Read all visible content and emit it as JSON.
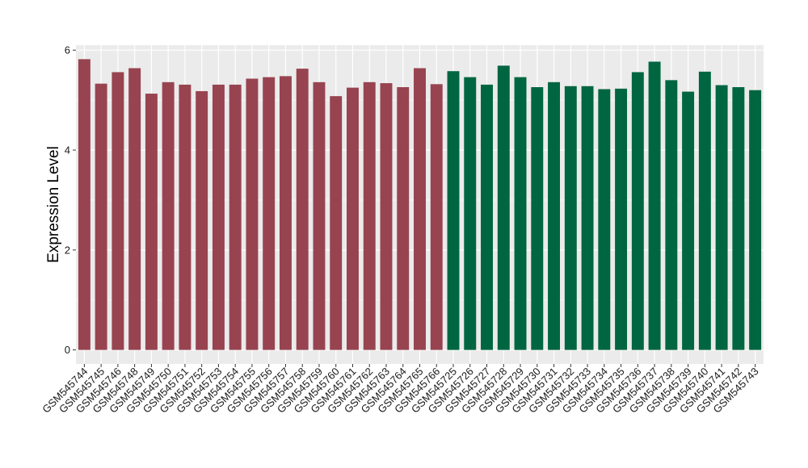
{
  "chart_data": {
    "type": "bar",
    "ylabel": "Expression Level",
    "xlabel": "",
    "ylim": [
      -0.28,
      6.1
    ],
    "yticks": [
      0,
      2,
      4,
      6
    ],
    "grid": true,
    "legend": "none",
    "colors": {
      "group1": "#984450",
      "group2": "#006641",
      "panel": "#ebebeb",
      "grid": "#ffffff"
    },
    "categories": [
      "GSM545744",
      "GSM545745",
      "GSM545746",
      "GSM545748",
      "GSM545749",
      "GSM545750",
      "GSM545751",
      "GSM545752",
      "GSM545753",
      "GSM545754",
      "GSM545755",
      "GSM545756",
      "GSM545757",
      "GSM545758",
      "GSM545759",
      "GSM545760",
      "GSM545761",
      "GSM545762",
      "GSM545763",
      "GSM545764",
      "GSM545765",
      "GSM545766",
      "GSM545725",
      "GSM545726",
      "GSM545727",
      "GSM545728",
      "GSM545729",
      "GSM545730",
      "GSM545731",
      "GSM545732",
      "GSM545733",
      "GSM545734",
      "GSM545735",
      "GSM545736",
      "GSM545737",
      "GSM545738",
      "GSM545739",
      "GSM545740",
      "GSM545741",
      "GSM545742",
      "GSM545743"
    ],
    "values": [
      5.82,
      5.33,
      5.56,
      5.64,
      5.13,
      5.36,
      5.31,
      5.18,
      5.31,
      5.31,
      5.43,
      5.46,
      5.48,
      5.63,
      5.36,
      5.08,
      5.25,
      5.36,
      5.34,
      5.26,
      5.64,
      5.32,
      5.58,
      5.46,
      5.31,
      5.69,
      5.46,
      5.26,
      5.36,
      5.28,
      5.28,
      5.22,
      5.23,
      5.56,
      5.77,
      5.4,
      5.17,
      5.57,
      5.3,
      5.26,
      5.2
    ],
    "groups": [
      1,
      1,
      1,
      1,
      1,
      1,
      1,
      1,
      1,
      1,
      1,
      1,
      1,
      1,
      1,
      1,
      1,
      1,
      1,
      1,
      1,
      1,
      2,
      2,
      2,
      2,
      2,
      2,
      2,
      2,
      2,
      2,
      2,
      2,
      2,
      2,
      2,
      2,
      2,
      2,
      2
    ]
  }
}
